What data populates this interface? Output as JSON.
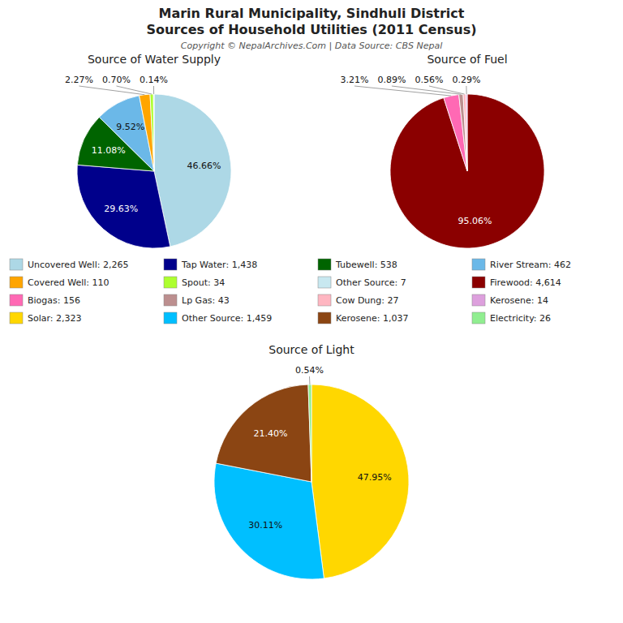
{
  "title": "Marin Rural Municipality, Sindhuli District",
  "subtitle": "Sources of Household Utilities (2011 Census)",
  "annotations": [
    "Copyright © NepalArchives.Com | Data Source: CBS Nepal"
  ],
  "chart_data": [
    {
      "type": "pie",
      "title": "Source of Water Supply",
      "categories": [
        "Uncovered Well: 2,265",
        "Tap Water: 1,438",
        "Tubewell: 538",
        "River Stream: 462",
        "Covered Well: 110",
        "Spout: 34",
        "Other Source: 7"
      ],
      "values": [
        46.66,
        29.63,
        11.08,
        9.52,
        2.27,
        0.7,
        0.14
      ],
      "value_labels": [
        "46.66%",
        "29.63%",
        "11.08%",
        "9.52%",
        "2.27%",
        "0.70%",
        "0.14%"
      ],
      "colors": [
        "#add8e6",
        "#00008b",
        "#006400",
        "#6bb8e8",
        "#ffa500",
        "#adff2f",
        "#c8e8f0"
      ],
      "data_labels": true,
      "legend": "bottom"
    },
    {
      "type": "pie",
      "title": "Source of Fuel",
      "categories": [
        "Firewood: 4,614",
        "Biogas: 156",
        "Lp Gas: 43",
        "Cow Dung: 27",
        "Kerosene: 14"
      ],
      "values": [
        95.06,
        3.21,
        0.89,
        0.56,
        0.29
      ],
      "value_labels": [
        "95.06%",
        "3.21%",
        "0.89%",
        "0.56%",
        "0.29%"
      ],
      "colors": [
        "#8b0000",
        "#ff69b4",
        "#bc8f8f",
        "#ffb6c1",
        "#dda0dd"
      ],
      "data_labels": true,
      "legend": "bottom"
    },
    {
      "type": "pie",
      "title": "Source of Light",
      "categories": [
        "Solar: 2,323",
        "Other Source: 1,459",
        "Kerosene: 1,037",
        "Electricity: 26"
      ],
      "values": [
        47.95,
        30.11,
        21.4,
        0.54
      ],
      "value_labels": [
        "47.95%",
        "30.11%",
        "21.40%",
        "0.54%"
      ],
      "colors": [
        "#ffd700",
        "#00bfff",
        "#8b4513",
        "#90ee90"
      ],
      "data_labels": true,
      "legend": "bottom"
    }
  ]
}
